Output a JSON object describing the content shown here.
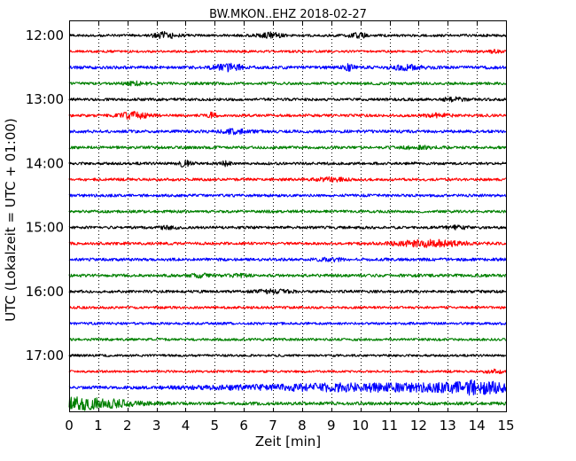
{
  "chart_data": {
    "type": "line",
    "title": "BW.MKON..EHZ 2018-02-27",
    "xlabel": "Zeit  [min]",
    "ylabel": "UTC (Lokalzeit = UTC + 01:00)",
    "xlim": [
      0,
      15
    ],
    "xticks": [
      "0",
      "1",
      "2",
      "3",
      "4",
      "5",
      "6",
      "7",
      "8",
      "9",
      "10",
      "11",
      "12",
      "13",
      "14",
      "15"
    ],
    "yticks": [
      "12:00",
      "13:00",
      "14:00",
      "15:00",
      "16:00",
      "17:00"
    ],
    "grid": "vertical-dotted",
    "trace_interval_min": 15,
    "series": [
      {
        "start": "12:00",
        "color": "#000000",
        "base": 2.6,
        "events": [
          [
            3.3,
            6,
            0.4
          ],
          [
            6.9,
            5,
            0.4
          ],
          [
            9.9,
            5,
            0.3
          ]
        ]
      },
      {
        "start": "12:15",
        "color": "#ff0000",
        "base": 2.4,
        "events": [
          [
            14.6,
            2,
            0.3
          ]
        ]
      },
      {
        "start": "12:30",
        "color": "#0000ff",
        "base": 3.2,
        "events": [
          [
            5.5,
            6,
            0.5
          ],
          [
            9.6,
            7,
            0.15
          ],
          [
            11.6,
            4,
            0.5
          ]
        ]
      },
      {
        "start": "12:45",
        "color": "#008000",
        "base": 2.8,
        "events": [
          [
            2.3,
            3,
            0.4
          ]
        ]
      },
      {
        "start": "13:00",
        "color": "#000000",
        "base": 2.8,
        "events": [
          [
            13.2,
            3,
            0.4
          ]
        ]
      },
      {
        "start": "13:15",
        "color": "#ff0000",
        "base": 2.8,
        "events": [
          [
            2.2,
            6,
            0.5
          ],
          [
            4.9,
            5,
            0.15
          ],
          [
            12.7,
            3,
            0.4
          ]
        ]
      },
      {
        "start": "13:30",
        "color": "#0000ff",
        "base": 3.0,
        "events": [
          [
            5.7,
            4,
            0.5
          ]
        ]
      },
      {
        "start": "13:45",
        "color": "#008000",
        "base": 2.8,
        "events": [
          [
            12.0,
            3,
            0.5
          ]
        ]
      },
      {
        "start": "14:00",
        "color": "#000000",
        "base": 2.8,
        "events": [
          [
            4.0,
            7,
            0.2
          ],
          [
            5.4,
            4,
            0.2
          ]
        ]
      },
      {
        "start": "14:15",
        "color": "#ff0000",
        "base": 2.8,
        "events": [
          [
            9.0,
            3,
            0.5
          ]
        ]
      },
      {
        "start": "14:30",
        "color": "#0000ff",
        "base": 2.8,
        "events": []
      },
      {
        "start": "14:45",
        "color": "#008000",
        "base": 2.8,
        "events": []
      },
      {
        "start": "15:00",
        "color": "#000000",
        "base": 2.8,
        "events": [
          [
            3.4,
            3,
            0.3
          ],
          [
            13.3,
            3,
            0.4
          ]
        ]
      },
      {
        "start": "15:15",
        "color": "#ff0000",
        "base": 2.8,
        "events": [
          [
            12.4,
            6,
            1.2
          ]
        ]
      },
      {
        "start": "15:30",
        "color": "#0000ff",
        "base": 3.0,
        "events": [
          [
            9.0,
            3,
            0.4
          ]
        ]
      },
      {
        "start": "15:45",
        "color": "#008000",
        "base": 3.0,
        "events": [
          [
            4.5,
            3,
            0.3
          ],
          [
            5.8,
            2,
            0.3
          ]
        ]
      },
      {
        "start": "16:00",
        "color": "#000000",
        "base": 2.8,
        "events": [
          [
            7.0,
            3,
            0.6
          ]
        ]
      },
      {
        "start": "16:15",
        "color": "#ff0000",
        "base": 2.6,
        "events": []
      },
      {
        "start": "16:30",
        "color": "#0000ff",
        "base": 2.6,
        "events": []
      },
      {
        "start": "16:45",
        "color": "#008000",
        "base": 2.6,
        "events": []
      },
      {
        "start": "17:00",
        "color": "#000000",
        "base": 2.4,
        "events": []
      },
      {
        "start": "17:15",
        "color": "#ff0000",
        "base": 2.4,
        "events": [
          [
            14.6,
            3,
            0.3
          ]
        ]
      },
      {
        "start": "17:30",
        "color": "#0000ff",
        "base": 3.0,
        "events": [
          [
            10.5,
            7,
            5.0
          ],
          [
            14.0,
            9,
            1.0
          ]
        ]
      },
      {
        "start": "17:45",
        "color": "#008000",
        "base": 3.2,
        "events": [
          [
            0.4,
            11,
            1.6
          ]
        ]
      }
    ]
  }
}
